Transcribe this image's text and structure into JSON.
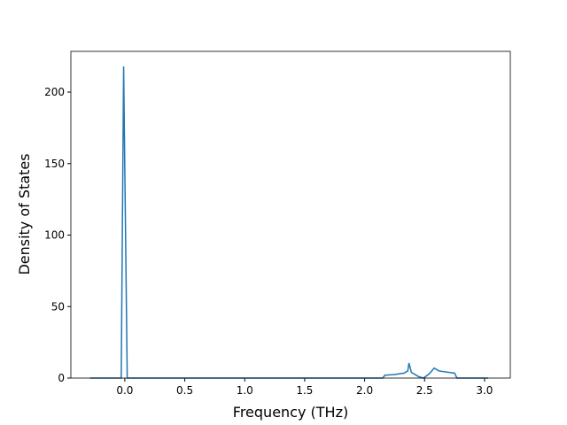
{
  "chart_data": {
    "type": "line",
    "xlabel": "Frequency (THz)",
    "ylabel": "Density of States",
    "x": [
      -0.29,
      -0.03,
      -0.01,
      0.02,
      0.5,
      1.0,
      1.5,
      2.0,
      2.15,
      2.17,
      2.25,
      2.33,
      2.36,
      2.37,
      2.39,
      2.45,
      2.49,
      2.54,
      2.58,
      2.62,
      2.7,
      2.75,
      2.77,
      2.9,
      3.03
    ],
    "series": [
      {
        "name": "DOS",
        "color": "#1f77b4",
        "values": [
          0,
          0,
          218,
          0,
          0,
          0,
          0,
          0,
          0,
          2,
          2.5,
          3.5,
          5,
          10.5,
          4,
          1,
          0,
          3,
          7,
          5,
          4,
          3.5,
          0,
          0,
          0
        ]
      }
    ],
    "xlim": [
      -0.45,
      3.215
    ],
    "ylim": [
      0,
      228.5
    ],
    "xticks": [
      {
        "value": 0,
        "label": "0.0"
      },
      0.5,
      {
        "value": 1,
        "label": "1.0"
      },
      1.5,
      {
        "value": 2,
        "label": "2.0"
      },
      2.5,
      {
        "value": 3,
        "label": "3.0"
      }
    ],
    "yticks": [
      0,
      50,
      100,
      150,
      200
    ]
  }
}
